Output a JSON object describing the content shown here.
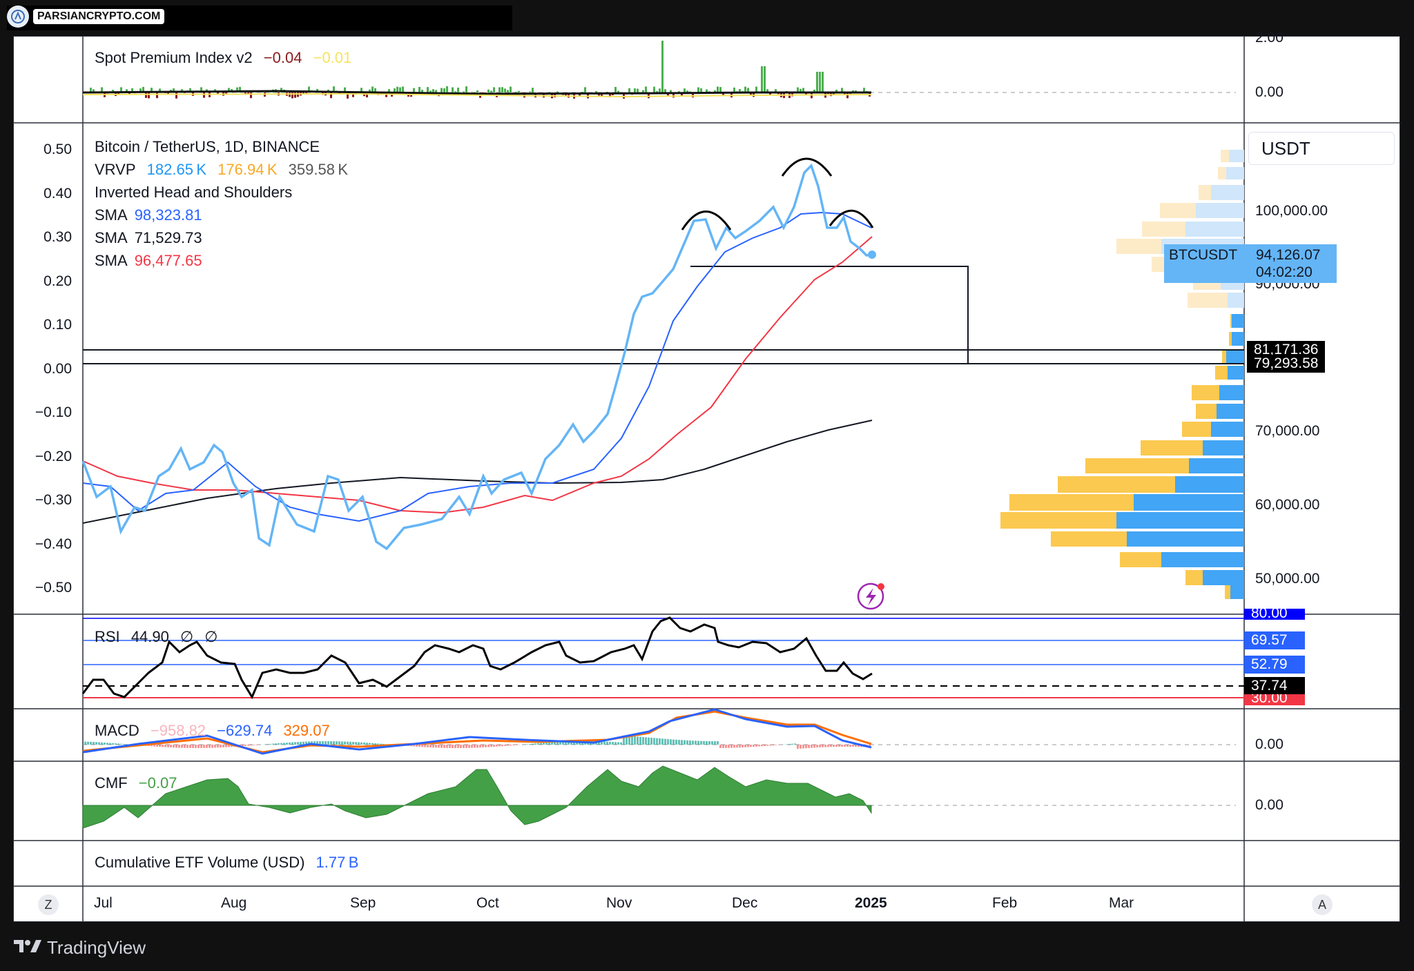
{
  "watermark": {
    "brand": "PARSIANCRYPTO.COM",
    "icon": "parsian-logo-icon"
  },
  "spot_premium": {
    "title": "Spot Premium Index v2",
    "v1": "−0.04",
    "v2": "−0.01",
    "axis": [
      "2.00",
      "0.00"
    ],
    "colors": {
      "v1": "#8b1a1a",
      "v2": "#f7e35c",
      "pos": "#4caf50",
      "neg": "#8b1a1a"
    }
  },
  "main": {
    "symbol_line": "Bitcoin / TetherUS, 1D, BINANCE",
    "vrvp": {
      "label": "VRVP",
      "up": "182.65 K",
      "down": "176.94 K",
      "total": "359.58 K"
    },
    "pattern": "Inverted Head and Shoulders",
    "sma": [
      {
        "label": "SMA",
        "value": "98,323.81",
        "color": "#2962ff"
      },
      {
        "label": "SMA",
        "value": "71,529.73",
        "color": "#131722"
      },
      {
        "label": "SMA",
        "value": "96,477.65",
        "color": "#f23645"
      }
    ],
    "left_axis": [
      "0.50",
      "0.40",
      "0.30",
      "0.20",
      "0.10",
      "0.00",
      "−0.10",
      "−0.20",
      "−0.30",
      "−0.40",
      "−0.50"
    ],
    "right_axis": [
      "100,000.00",
      "90,000.00",
      "70,000.00",
      "60,000.00",
      "50,000.00"
    ],
    "currency": "USDT",
    "last": {
      "symbol": "BTCUSDT",
      "price": "94,126.07",
      "countdown": "04:02:20"
    },
    "levels": [
      "81,171.36",
      "79,293.58"
    ],
    "lightning_icon": "lightning-alert-icon"
  },
  "rsi": {
    "title": "RSI",
    "value": "44.90",
    "flags": [
      "∅",
      "∅"
    ],
    "tags": [
      {
        "text": "80.00",
        "bg": "#0000ff"
      },
      {
        "text": "69.57",
        "bg": "#2962ff"
      },
      {
        "text": "52.79",
        "bg": "#2962ff"
      },
      {
        "text": "37.74",
        "bg": "#000000"
      },
      {
        "text": "30.00",
        "bg": "#f23645"
      }
    ]
  },
  "macd": {
    "title": "MACD",
    "hist": "−958.82",
    "macd": "−629.74",
    "signal": "329.07",
    "axis": "0.00"
  },
  "cmf": {
    "title": "CMF",
    "value": "−0.07",
    "axis": "0.00"
  },
  "etf": {
    "title": "Cumulative ETF Volume (USD)",
    "value": "1.77 B"
  },
  "time_axis": {
    "months": [
      "Jul",
      "Aug",
      "Sep",
      "Oct",
      "Nov",
      "Dec",
      "2025",
      "Feb",
      "Mar"
    ],
    "left_button": "Z",
    "right_button": "A"
  },
  "footer": {
    "brand": "TradingView"
  }
}
